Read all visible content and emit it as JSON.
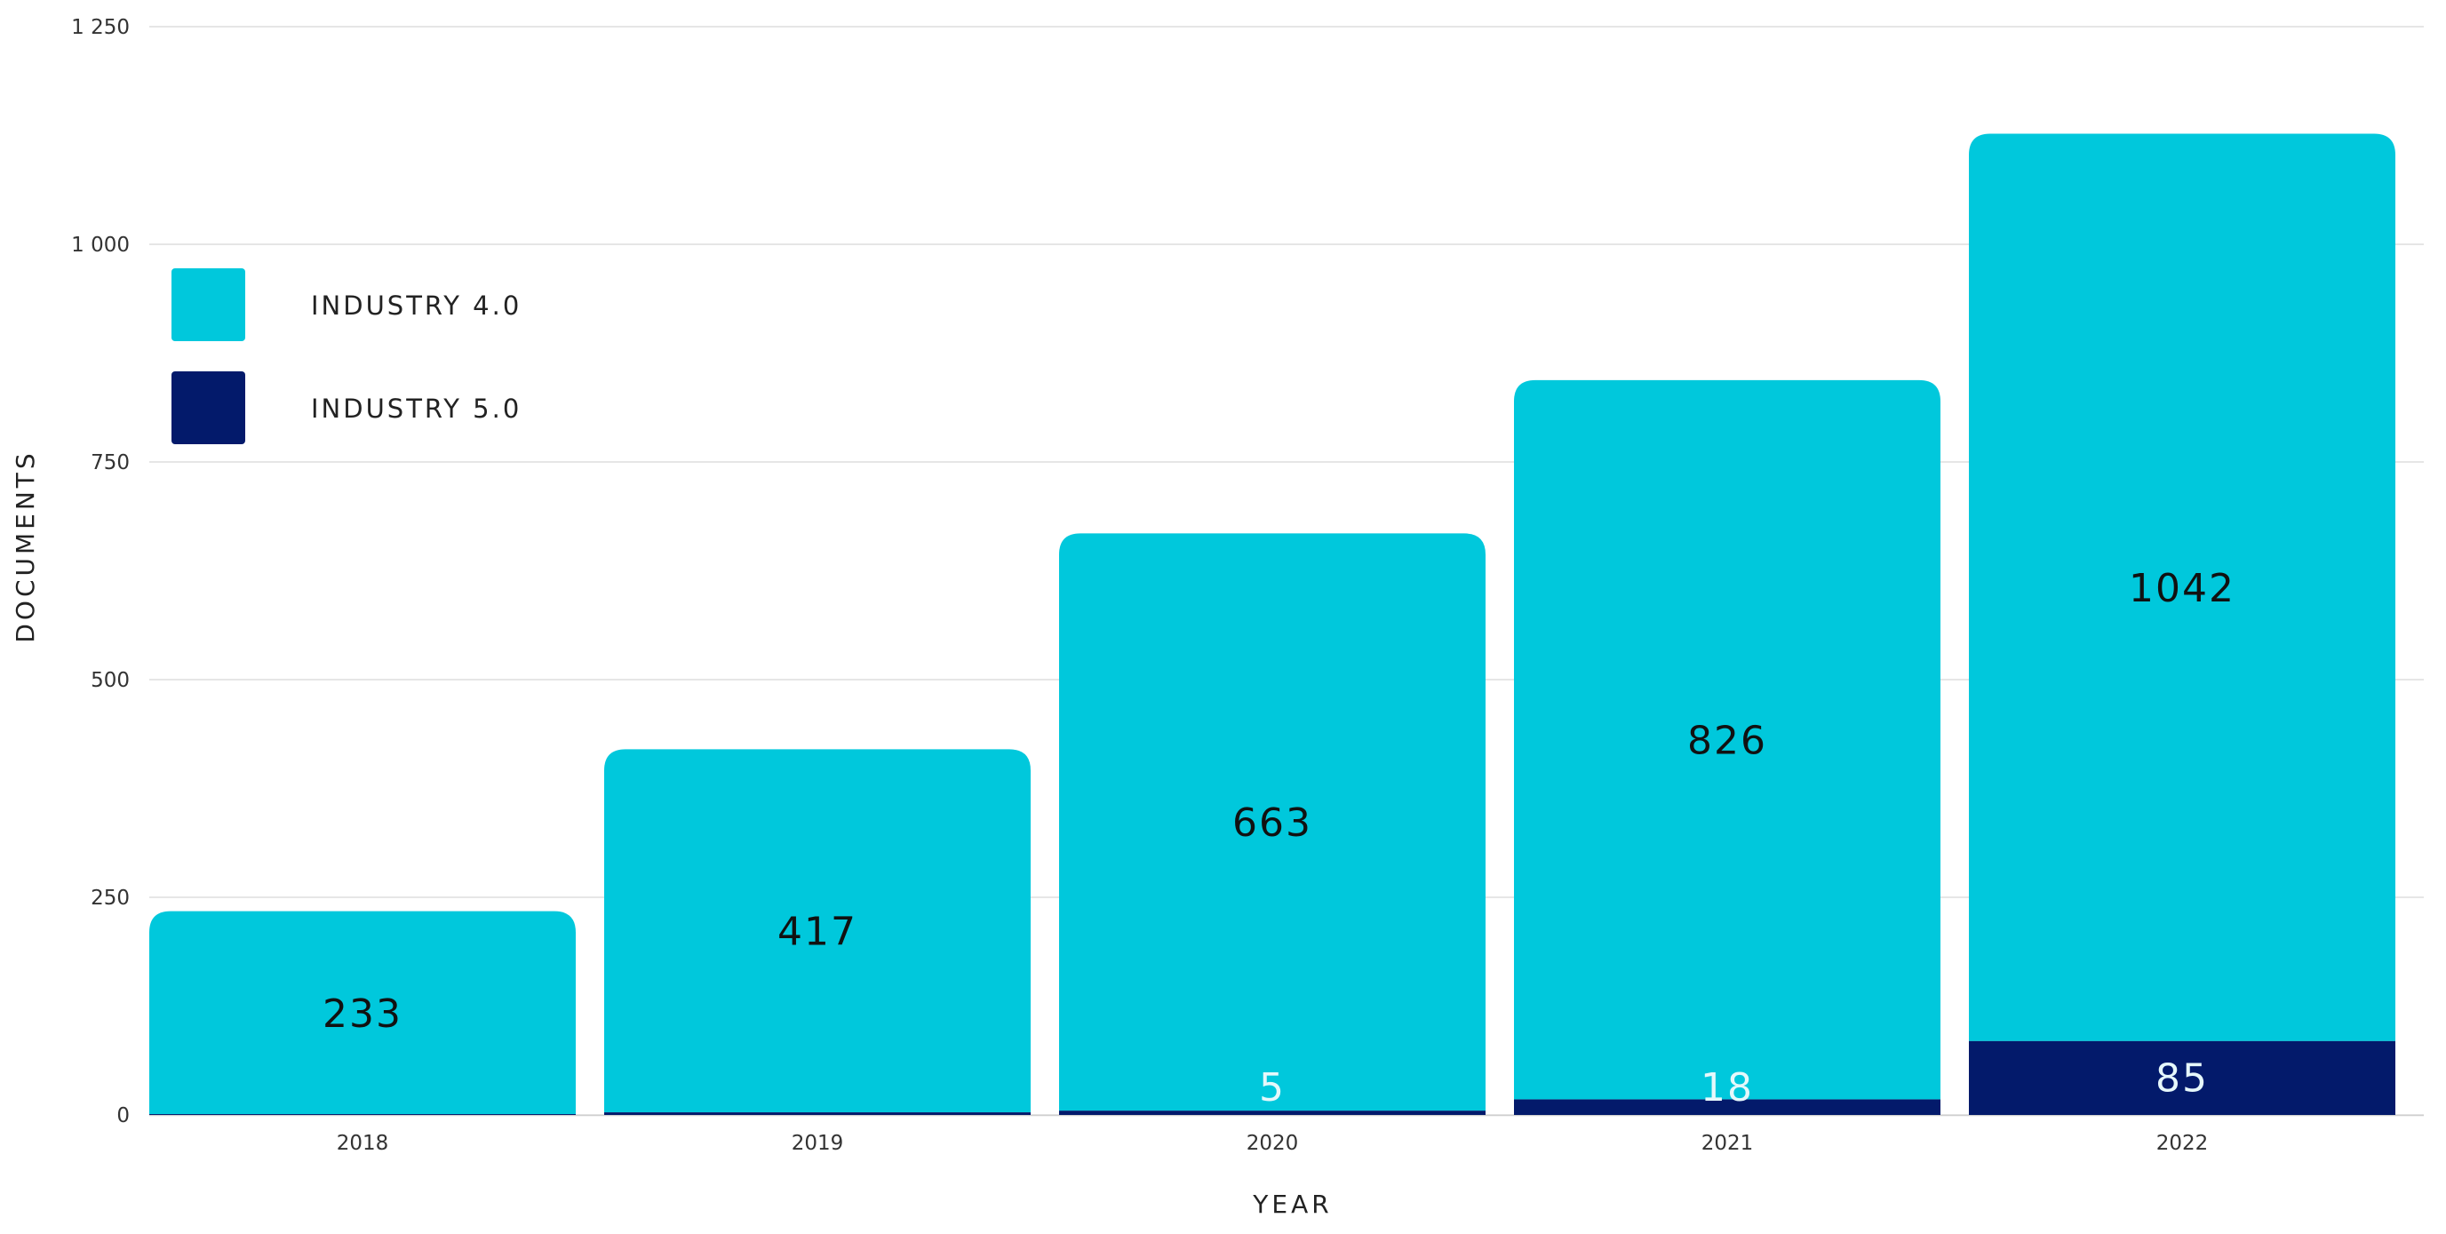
{
  "chart_data": {
    "type": "bar",
    "stacked": true,
    "categories": [
      "2018",
      "2019",
      "2020",
      "2021",
      "2022"
    ],
    "series": [
      {
        "name": "INDUSTRY 5.0",
        "color": "#031a6b",
        "values": [
          1,
          3,
          5,
          18,
          85
        ],
        "labels": [
          "",
          "",
          "5",
          "18",
          "85"
        ],
        "label_color": "#e6f8fb"
      },
      {
        "name": "INDUSTRY 4.0",
        "color": "#00c8dc",
        "values": [
          233,
          417,
          663,
          826,
          1042
        ],
        "labels": [
          "233",
          "417",
          "663",
          "826",
          "1042"
        ],
        "label_color": "#111111"
      }
    ],
    "legend_order": [
      "INDUSTRY 4.0",
      "INDUSTRY 5.0"
    ],
    "legend_position": "top-left",
    "xlabel": "YEAR",
    "ylabel": "DOCUMENTS",
    "ylim": [
      0,
      1250
    ],
    "yticks": [
      0,
      250,
      500,
      750,
      1000,
      1250
    ],
    "ytick_labels": [
      "0",
      "250",
      "500",
      "750",
      "1 000",
      "1 250"
    ],
    "grid": true,
    "gridline_color": "#dddddd"
  }
}
